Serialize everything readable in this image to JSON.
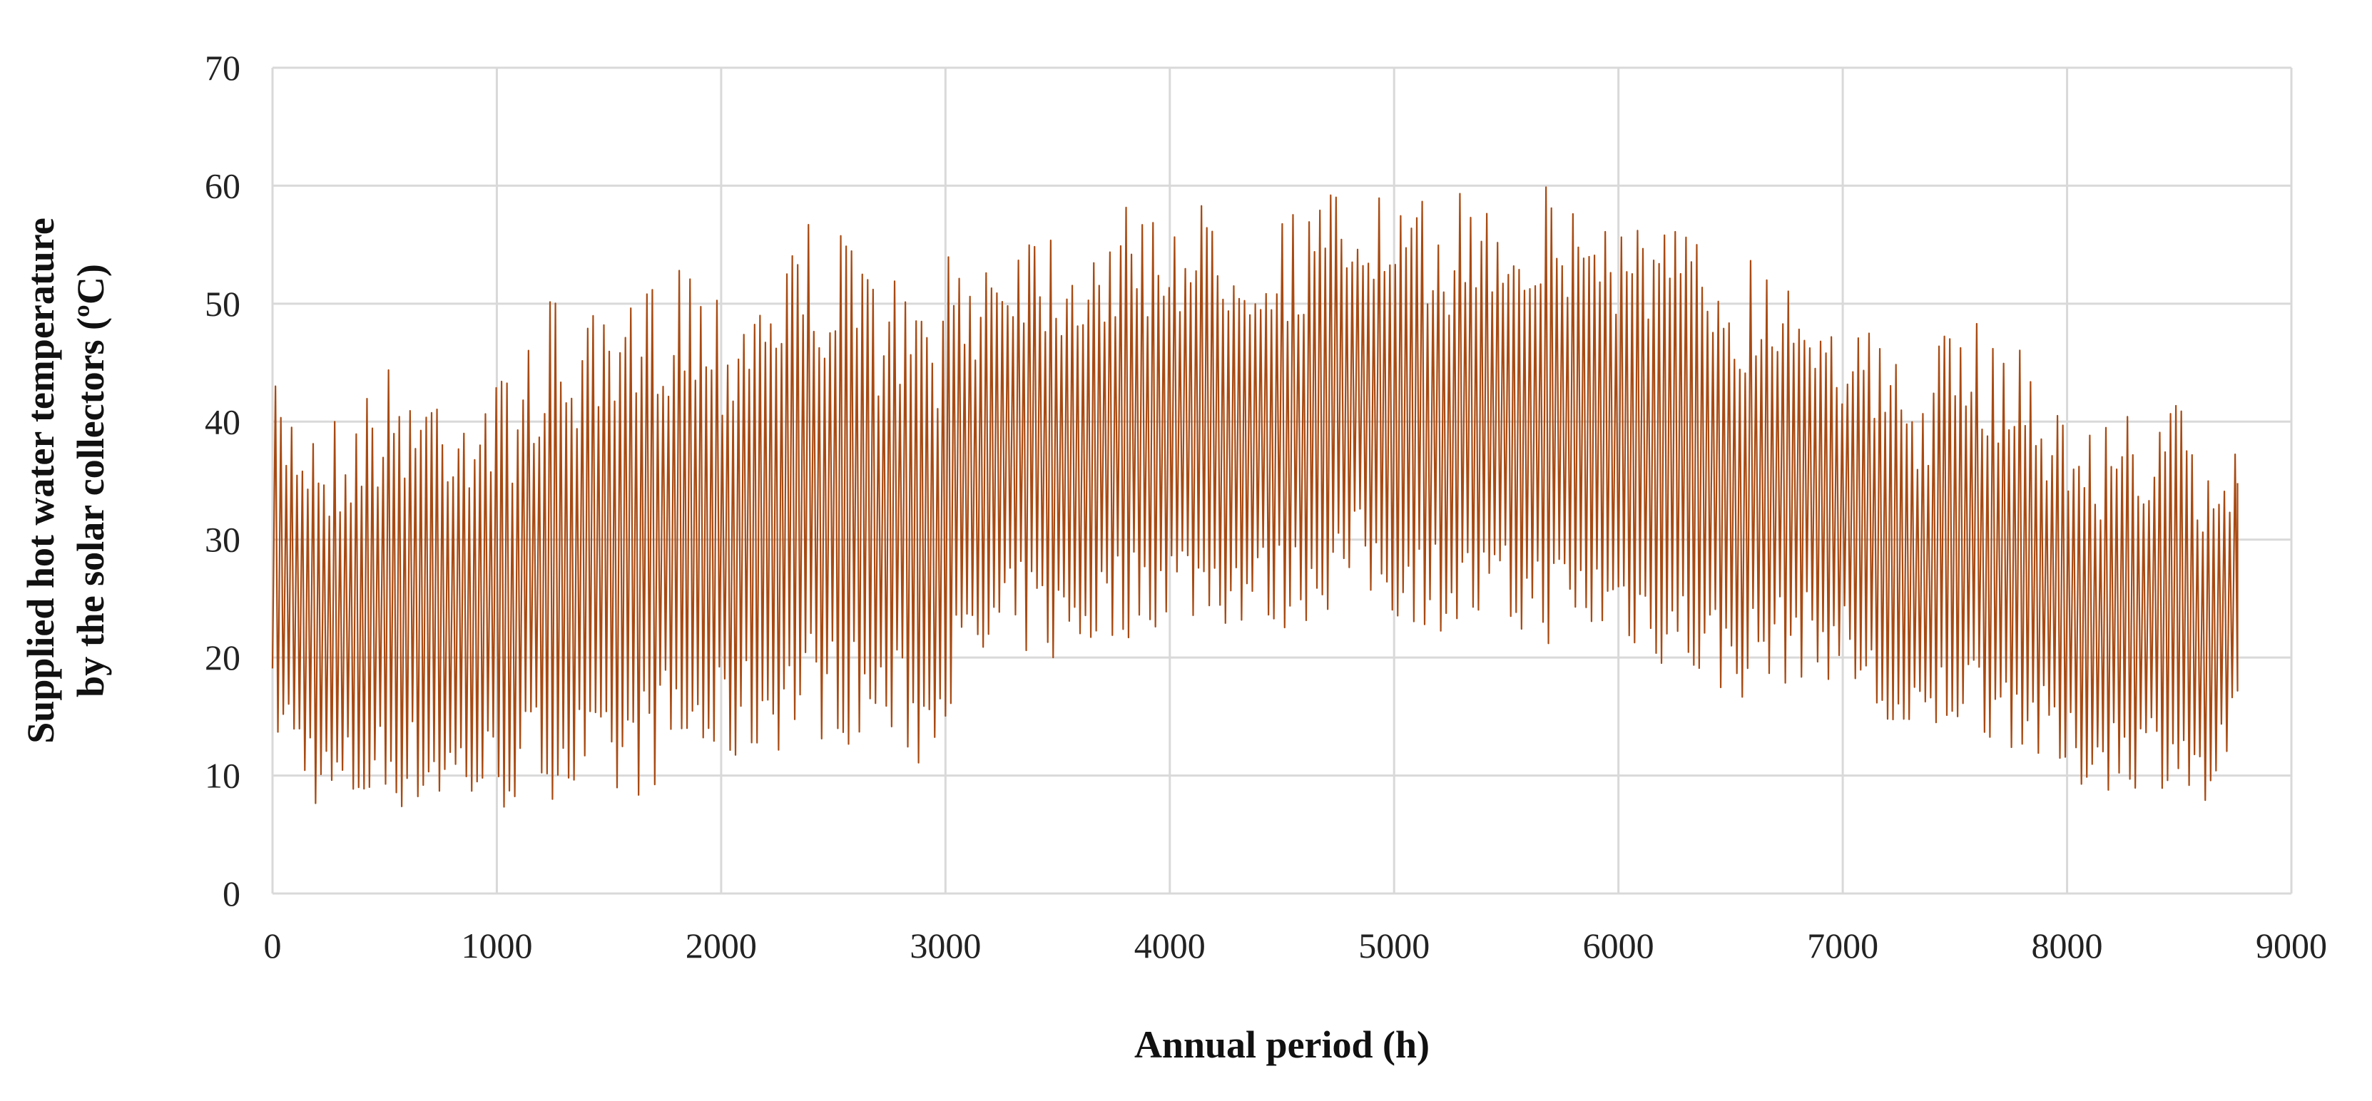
{
  "chart_data": {
    "type": "line",
    "title": "",
    "xlabel": "Annual period (h)",
    "ylabel_line1": "Supplied hot water temperature",
    "ylabel_line2": "by the solar collectors (ºC)",
    "xlim": [
      0,
      9000
    ],
    "ylim": [
      0,
      70
    ],
    "x_ticks": [
      0,
      1000,
      2000,
      3000,
      4000,
      5000,
      6000,
      7000,
      8000,
      9000
    ],
    "y_ticks": [
      0,
      10,
      20,
      30,
      40,
      50,
      60,
      70
    ],
    "x_tick_labels": [
      "0",
      "1000",
      "2000",
      "3000",
      "4000",
      "5000",
      "6000",
      "7000",
      "8000",
      "9000"
    ],
    "y_tick_labels": [
      "0",
      "10",
      "20",
      "30",
      "40",
      "50",
      "60",
      "70"
    ],
    "grid": true,
    "legend": "none",
    "series_color": "#a84a12",
    "series": [
      {
        "description_of_shape": "hourly series; daily cycle between a night minimum and a midday peak",
        "x_start": 0,
        "x_end": 8760,
        "period_h": 24,
        "envelope": {
          "x": [
            0,
            250,
            500,
            1000,
            1250,
            1500,
            1800,
            2000,
            2400,
            2800,
            2900,
            3000,
            3350,
            3500,
            4000,
            4500,
            4850,
            5000,
            5500,
            6000,
            6500,
            6800,
            7000,
            7300,
            7500,
            7800,
            8000,
            8500,
            8600,
            8760
          ],
          "max": [
            43,
            41,
            45,
            44,
            51,
            48,
            56,
            52,
            58,
            52,
            50,
            54,
            59,
            57,
            59,
            58,
            61,
            58,
            61,
            59,
            55,
            54,
            50,
            44,
            49,
            47,
            40,
            42,
            36,
            41
          ],
          "min": [
            13,
            5.5,
            7,
            6.5,
            8,
            6.5,
            10,
            10,
            13,
            12,
            10,
            15,
            20,
            19,
            23,
            22,
            25,
            23,
            21,
            21,
            16,
            18,
            18,
            10,
            14,
            12,
            8.5,
            9,
            5.5,
            11
          ]
        }
      }
    ]
  }
}
